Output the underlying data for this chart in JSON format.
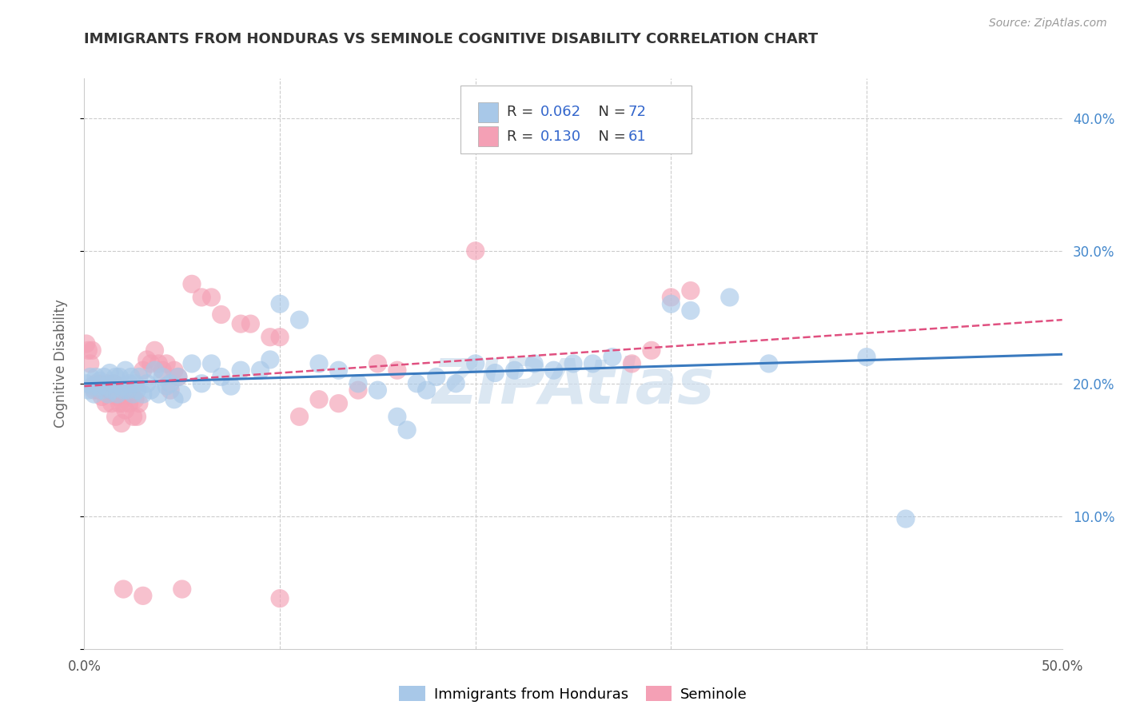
{
  "title": "IMMIGRANTS FROM HONDURAS VS SEMINOLE COGNITIVE DISABILITY CORRELATION CHART",
  "source_text": "Source: ZipAtlas.com",
  "ylabel": "Cognitive Disability",
  "xlim": [
    0.0,
    0.5
  ],
  "ylim": [
    0.0,
    0.43
  ],
  "xticks": [
    0.0,
    0.1,
    0.2,
    0.3,
    0.4,
    0.5
  ],
  "xticklabels": [
    "0.0%",
    "",
    "",
    "",
    "",
    "50.0%"
  ],
  "yticks": [
    0.0,
    0.1,
    0.2,
    0.3,
    0.4
  ],
  "right_yticklabels": [
    "",
    "10.0%",
    "20.0%",
    "30.0%",
    "40.0%"
  ],
  "color_blue": "#a8c8e8",
  "color_pink": "#f4a0b5",
  "line_blue": "#3a7abf",
  "line_pink": "#e05080",
  "watermark_color": "#ccdded",
  "title_color": "#333333",
  "legend_value_color": "#3366cc",
  "grid_color": "#cccccc",
  "bg_color": "#ffffff",
  "blue_line_x": [
    0.0,
    0.5
  ],
  "blue_line_y": [
    0.2,
    0.222
  ],
  "pink_line_x": [
    0.0,
    0.5
  ],
  "pink_line_y": [
    0.198,
    0.248
  ],
  "blue_scatter": [
    [
      0.001,
      0.2
    ],
    [
      0.002,
      0.195
    ],
    [
      0.003,
      0.205
    ],
    [
      0.004,
      0.198
    ],
    [
      0.005,
      0.192
    ],
    [
      0.006,
      0.205
    ],
    [
      0.007,
      0.198
    ],
    [
      0.008,
      0.202
    ],
    [
      0.009,
      0.195
    ],
    [
      0.01,
      0.205
    ],
    [
      0.011,
      0.198
    ],
    [
      0.012,
      0.192
    ],
    [
      0.013,
      0.208
    ],
    [
      0.014,
      0.195
    ],
    [
      0.015,
      0.2
    ],
    [
      0.016,
      0.205
    ],
    [
      0.017,
      0.192
    ],
    [
      0.018,
      0.205
    ],
    [
      0.019,
      0.198
    ],
    [
      0.02,
      0.195
    ],
    [
      0.021,
      0.21
    ],
    [
      0.022,
      0.195
    ],
    [
      0.023,
      0.2
    ],
    [
      0.024,
      0.205
    ],
    [
      0.025,
      0.192
    ],
    [
      0.026,
      0.2
    ],
    [
      0.027,
      0.195
    ],
    [
      0.028,
      0.205
    ],
    [
      0.03,
      0.192
    ],
    [
      0.032,
      0.2
    ],
    [
      0.034,
      0.195
    ],
    [
      0.036,
      0.21
    ],
    [
      0.038,
      0.192
    ],
    [
      0.04,
      0.205
    ],
    [
      0.042,
      0.198
    ],
    [
      0.044,
      0.2
    ],
    [
      0.046,
      0.188
    ],
    [
      0.048,
      0.205
    ],
    [
      0.05,
      0.192
    ],
    [
      0.055,
      0.215
    ],
    [
      0.06,
      0.2
    ],
    [
      0.065,
      0.215
    ],
    [
      0.07,
      0.205
    ],
    [
      0.075,
      0.198
    ],
    [
      0.08,
      0.21
    ],
    [
      0.09,
      0.21
    ],
    [
      0.095,
      0.218
    ],
    [
      0.1,
      0.26
    ],
    [
      0.11,
      0.248
    ],
    [
      0.12,
      0.215
    ],
    [
      0.13,
      0.21
    ],
    [
      0.14,
      0.2
    ],
    [
      0.15,
      0.195
    ],
    [
      0.16,
      0.175
    ],
    [
      0.165,
      0.165
    ],
    [
      0.17,
      0.2
    ],
    [
      0.175,
      0.195
    ],
    [
      0.18,
      0.205
    ],
    [
      0.19,
      0.2
    ],
    [
      0.2,
      0.215
    ],
    [
      0.21,
      0.208
    ],
    [
      0.22,
      0.21
    ],
    [
      0.23,
      0.215
    ],
    [
      0.24,
      0.21
    ],
    [
      0.25,
      0.215
    ],
    [
      0.26,
      0.215
    ],
    [
      0.27,
      0.22
    ],
    [
      0.3,
      0.26
    ],
    [
      0.31,
      0.255
    ],
    [
      0.33,
      0.265
    ],
    [
      0.35,
      0.215
    ],
    [
      0.4,
      0.22
    ],
    [
      0.42,
      0.098
    ]
  ],
  "pink_scatter": [
    [
      0.001,
      0.23
    ],
    [
      0.002,
      0.225
    ],
    [
      0.003,
      0.215
    ],
    [
      0.004,
      0.225
    ],
    [
      0.005,
      0.195
    ],
    [
      0.006,
      0.2
    ],
    [
      0.007,
      0.195
    ],
    [
      0.008,
      0.2
    ],
    [
      0.009,
      0.19
    ],
    [
      0.01,
      0.195
    ],
    [
      0.011,
      0.185
    ],
    [
      0.012,
      0.2
    ],
    [
      0.013,
      0.195
    ],
    [
      0.014,
      0.185
    ],
    [
      0.015,
      0.2
    ],
    [
      0.016,
      0.175
    ],
    [
      0.017,
      0.19
    ],
    [
      0.018,
      0.185
    ],
    [
      0.019,
      0.17
    ],
    [
      0.02,
      0.185
    ],
    [
      0.021,
      0.18
    ],
    [
      0.022,
      0.195
    ],
    [
      0.023,
      0.185
    ],
    [
      0.024,
      0.192
    ],
    [
      0.025,
      0.175
    ],
    [
      0.026,
      0.188
    ],
    [
      0.027,
      0.175
    ],
    [
      0.028,
      0.185
    ],
    [
      0.03,
      0.21
    ],
    [
      0.032,
      0.218
    ],
    [
      0.034,
      0.215
    ],
    [
      0.036,
      0.225
    ],
    [
      0.038,
      0.215
    ],
    [
      0.04,
      0.21
    ],
    [
      0.042,
      0.215
    ],
    [
      0.044,
      0.195
    ],
    [
      0.046,
      0.21
    ],
    [
      0.048,
      0.205
    ],
    [
      0.055,
      0.275
    ],
    [
      0.06,
      0.265
    ],
    [
      0.065,
      0.265
    ],
    [
      0.07,
      0.252
    ],
    [
      0.08,
      0.245
    ],
    [
      0.085,
      0.245
    ],
    [
      0.095,
      0.235
    ],
    [
      0.1,
      0.235
    ],
    [
      0.11,
      0.175
    ],
    [
      0.12,
      0.188
    ],
    [
      0.13,
      0.185
    ],
    [
      0.14,
      0.195
    ],
    [
      0.15,
      0.215
    ],
    [
      0.16,
      0.21
    ],
    [
      0.28,
      0.215
    ],
    [
      0.29,
      0.225
    ],
    [
      0.3,
      0.265
    ],
    [
      0.31,
      0.27
    ],
    [
      0.02,
      0.045
    ],
    [
      0.03,
      0.04
    ],
    [
      0.05,
      0.045
    ],
    [
      0.1,
      0.038
    ],
    [
      0.2,
      0.3
    ]
  ]
}
